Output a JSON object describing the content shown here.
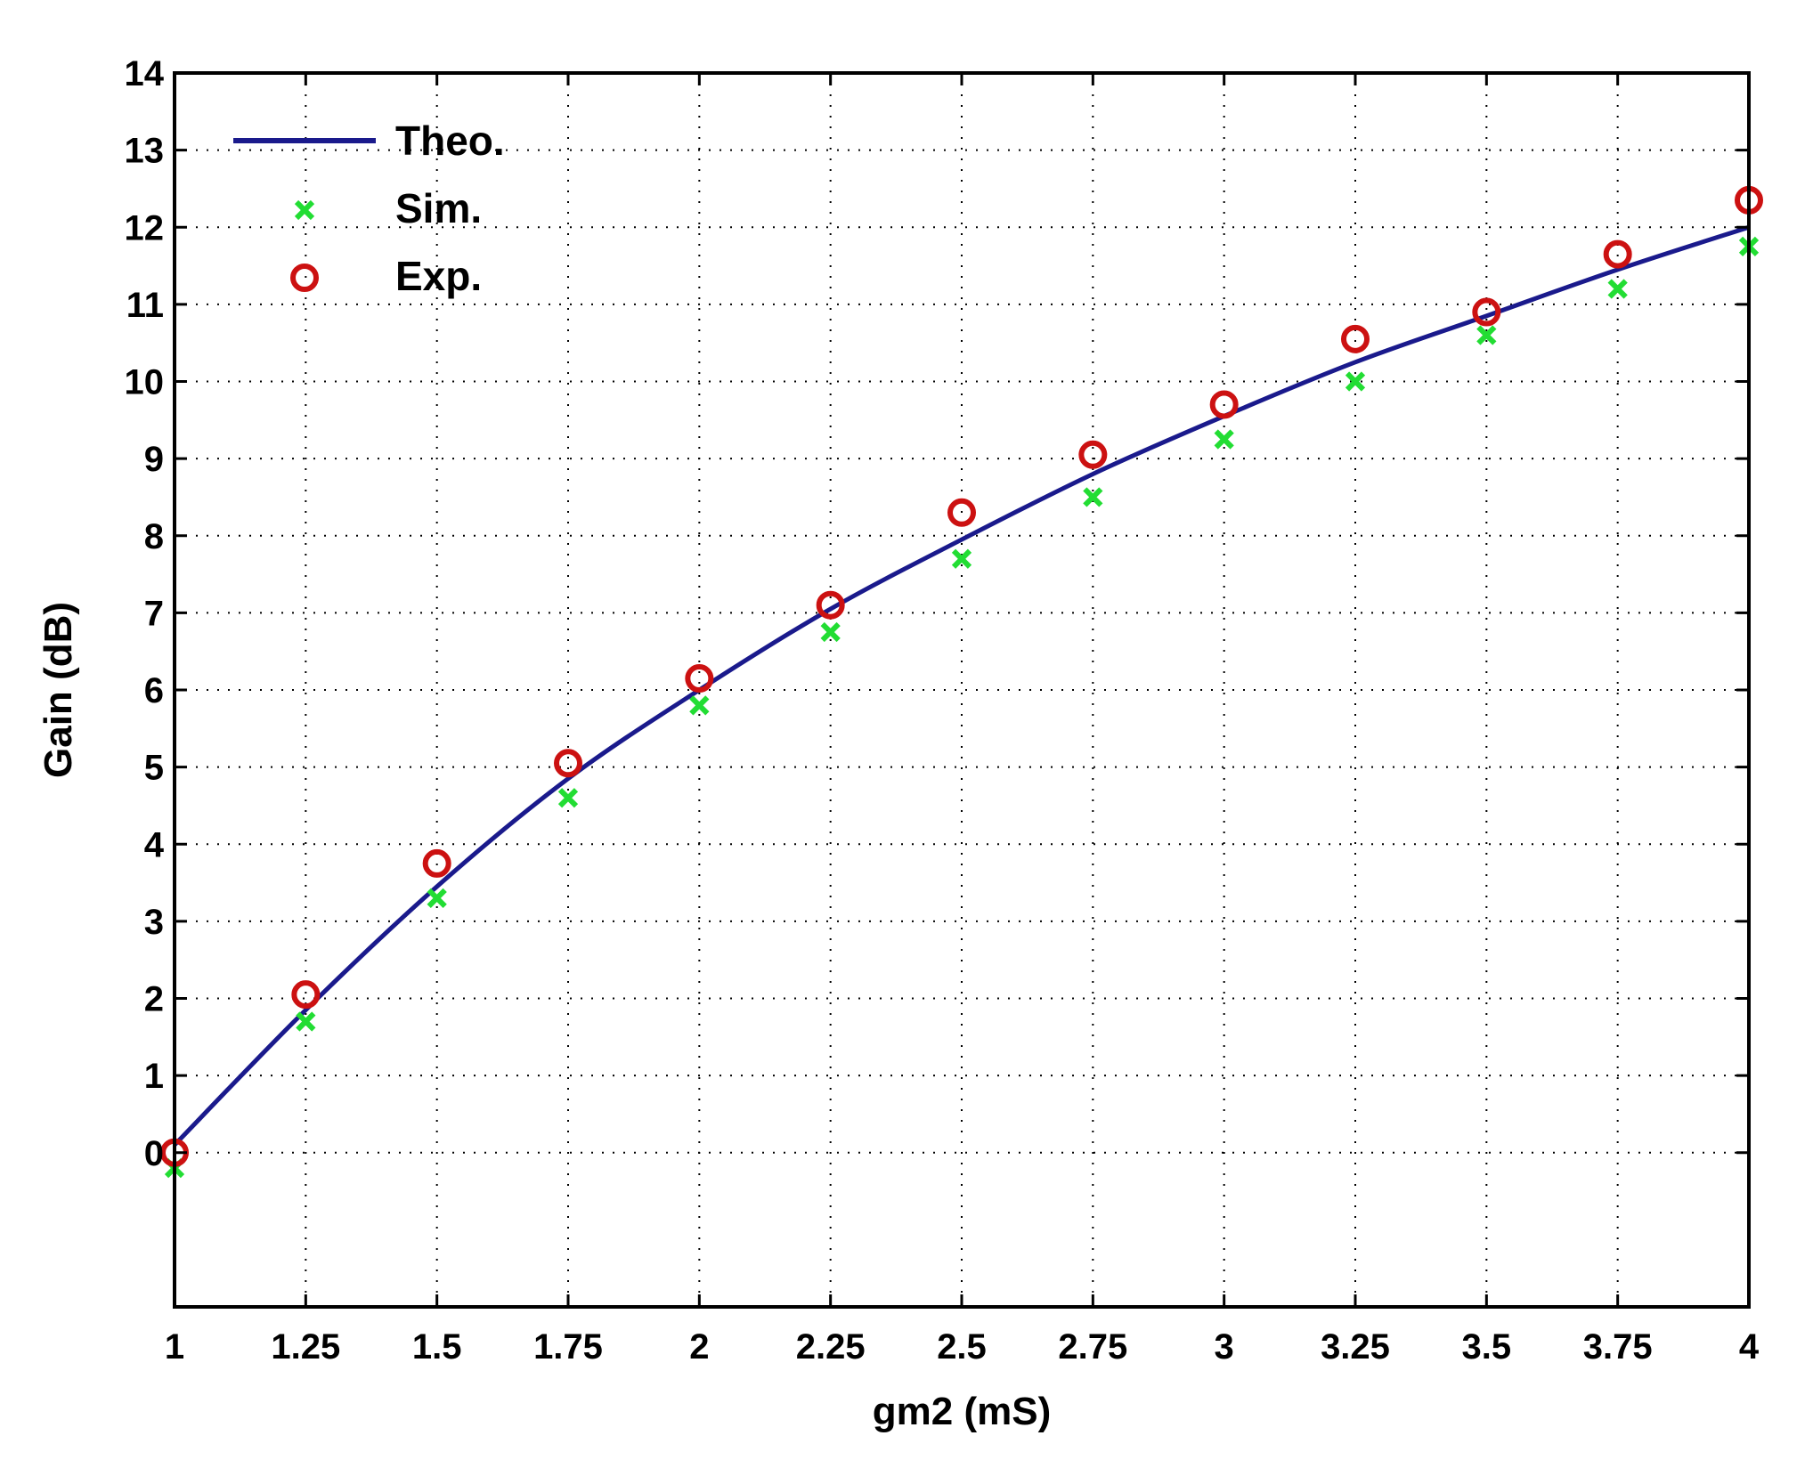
{
  "chart_data": {
    "type": "line",
    "title": "",
    "xlabel": "gm2 (mS)",
    "ylabel": "Gain (dB)",
    "xlim": [
      1,
      4
    ],
    "ylim": [
      -2,
      14
    ],
    "xticks": [
      1,
      1.25,
      1.5,
      1.75,
      2,
      2.25,
      2.5,
      2.75,
      3,
      3.25,
      3.5,
      3.75,
      4
    ],
    "xtick_labels": [
      "1",
      "1.25",
      "1.5",
      "1.75",
      "2",
      "2.25",
      "2.5",
      "2.75",
      "3",
      "3.25",
      "3.5",
      "3.75",
      "4"
    ],
    "yticks": [
      0,
      1,
      2,
      3,
      4,
      5,
      6,
      7,
      8,
      9,
      10,
      11,
      12,
      13,
      14
    ],
    "ytick_labels": [
      "0",
      "1",
      "2",
      "3",
      "4",
      "5",
      "6",
      "7",
      "8",
      "9",
      "10",
      "11",
      "12",
      "13",
      "14"
    ],
    "grid": true,
    "legend_position": "top-left",
    "x": [
      1,
      1.25,
      1.5,
      1.75,
      2,
      2.25,
      2.5,
      2.75,
      3,
      3.25,
      3.5,
      3.75,
      4
    ],
    "series": [
      {
        "name": "Theo.",
        "style": "line",
        "color": "#1a1a8c",
        "values": [
          0.1,
          1.85,
          3.45,
          4.85,
          6.0,
          7.05,
          7.95,
          8.8,
          9.55,
          10.25,
          10.85,
          11.45,
          12.0
        ]
      },
      {
        "name": "Sim.",
        "style": "x-marker",
        "color": "#22dd33",
        "values": [
          -0.2,
          1.7,
          3.3,
          4.6,
          5.8,
          6.75,
          7.7,
          8.5,
          9.25,
          10.0,
          10.6,
          11.2,
          11.75
        ]
      },
      {
        "name": "Exp.",
        "style": "circle-marker",
        "color": "#cc1111",
        "values": [
          0.0,
          2.05,
          3.75,
          5.05,
          6.15,
          7.1,
          8.3,
          9.05,
          9.7,
          10.55,
          10.9,
          11.65,
          12.35
        ]
      }
    ]
  }
}
